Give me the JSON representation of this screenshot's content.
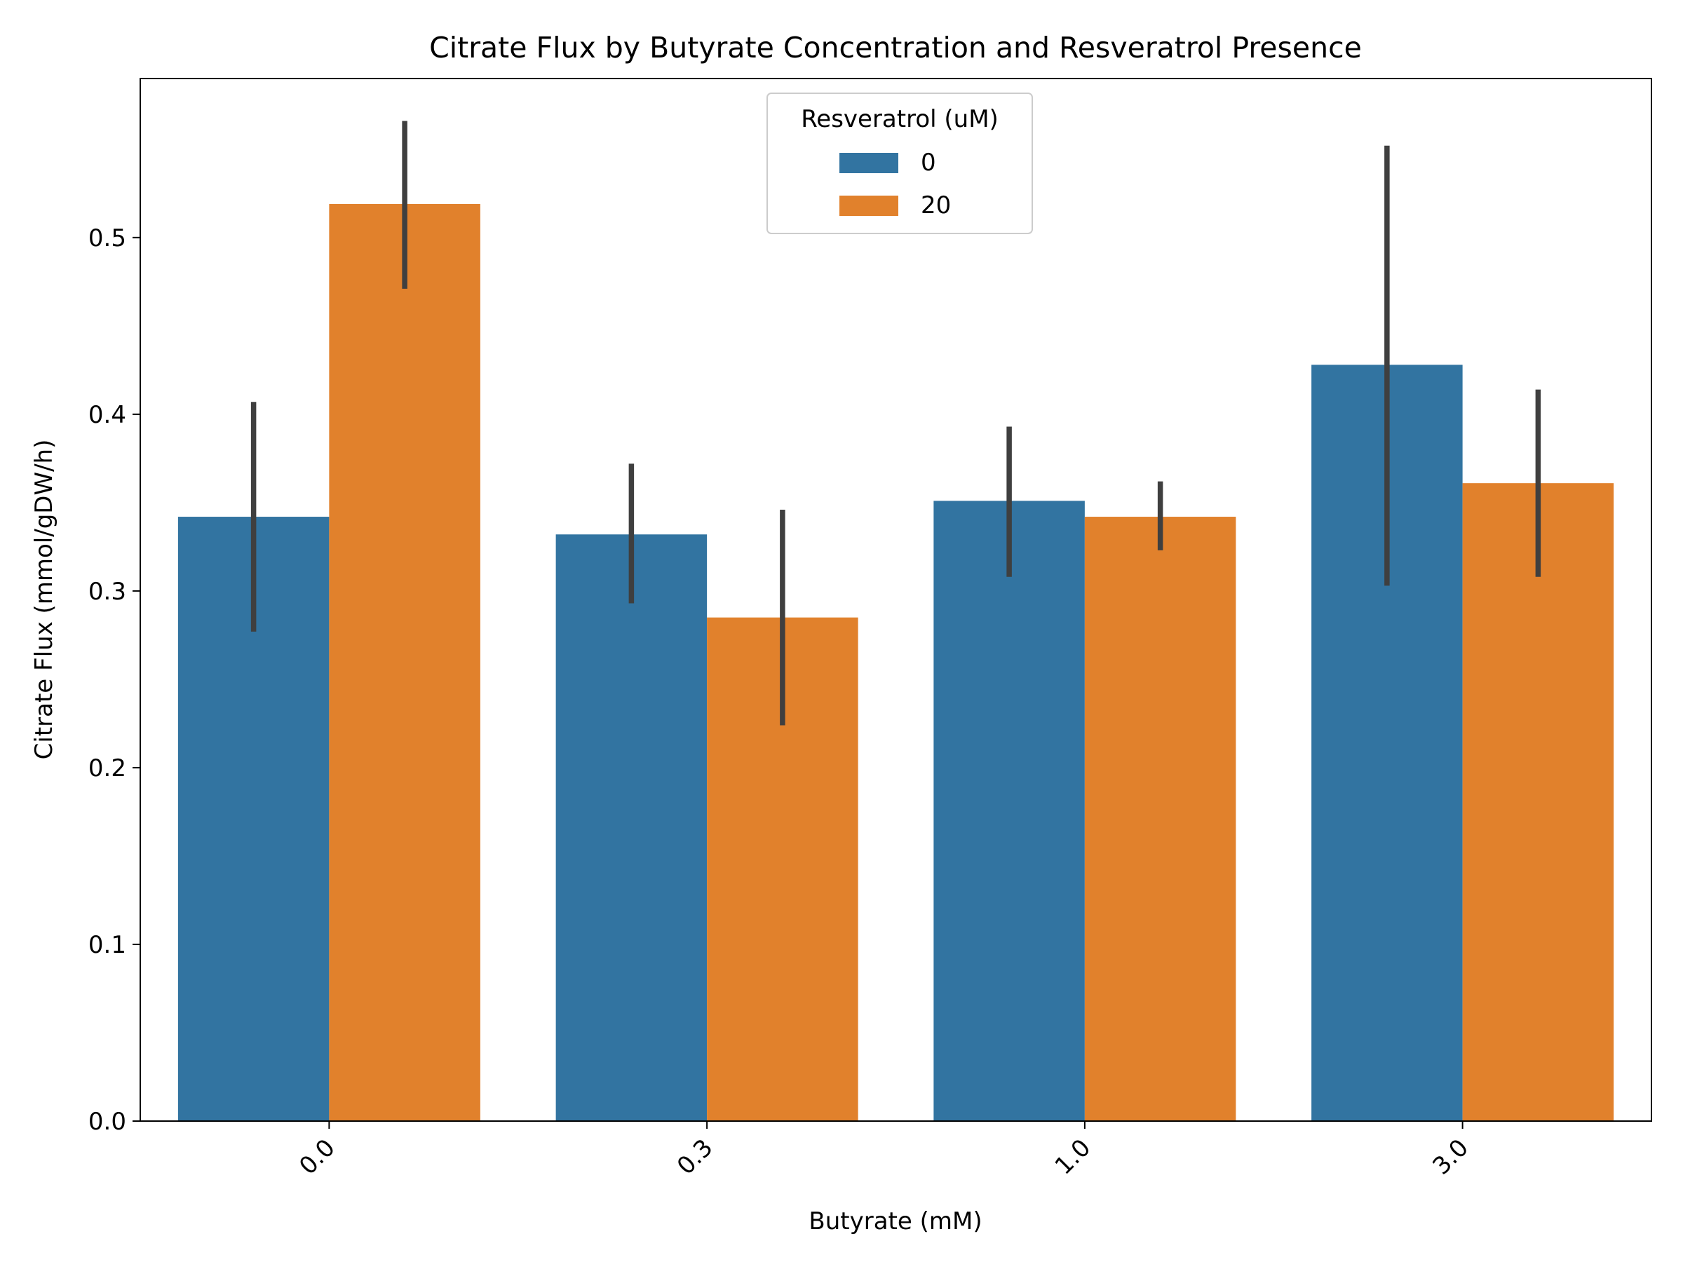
{
  "chart_data": {
    "type": "bar",
    "title": "Citrate Flux by Butyrate Concentration and Resveratrol Presence",
    "xlabel": "Butyrate (mM)",
    "ylabel": "Citrate Flux (mmol/gDW/h)",
    "categories": [
      "0.0",
      "0.3",
      "1.0",
      "3.0"
    ],
    "ylim": [
      0,
      0.59
    ],
    "yticks": [
      "0.0",
      "0.1",
      "0.2",
      "0.3",
      "0.4",
      "0.5"
    ],
    "grid": false,
    "legend": {
      "title": "Resveratrol (uM)",
      "placement": "upper center"
    },
    "series": [
      {
        "name": "0",
        "color": "#3274a1",
        "values": [
          0.342,
          0.332,
          0.351,
          0.428
        ],
        "error_low": [
          0.277,
          0.293,
          0.308,
          0.303
        ],
        "error_high": [
          0.407,
          0.372,
          0.393,
          0.552
        ]
      },
      {
        "name": "20",
        "color": "#e1812c",
        "values": [
          0.519,
          0.285,
          0.342,
          0.361
        ],
        "error_low": [
          0.471,
          0.224,
          0.323,
          0.308
        ],
        "error_high": [
          0.566,
          0.346,
          0.362,
          0.414
        ]
      }
    ],
    "error_bar_color": "#3f3f3f"
  }
}
